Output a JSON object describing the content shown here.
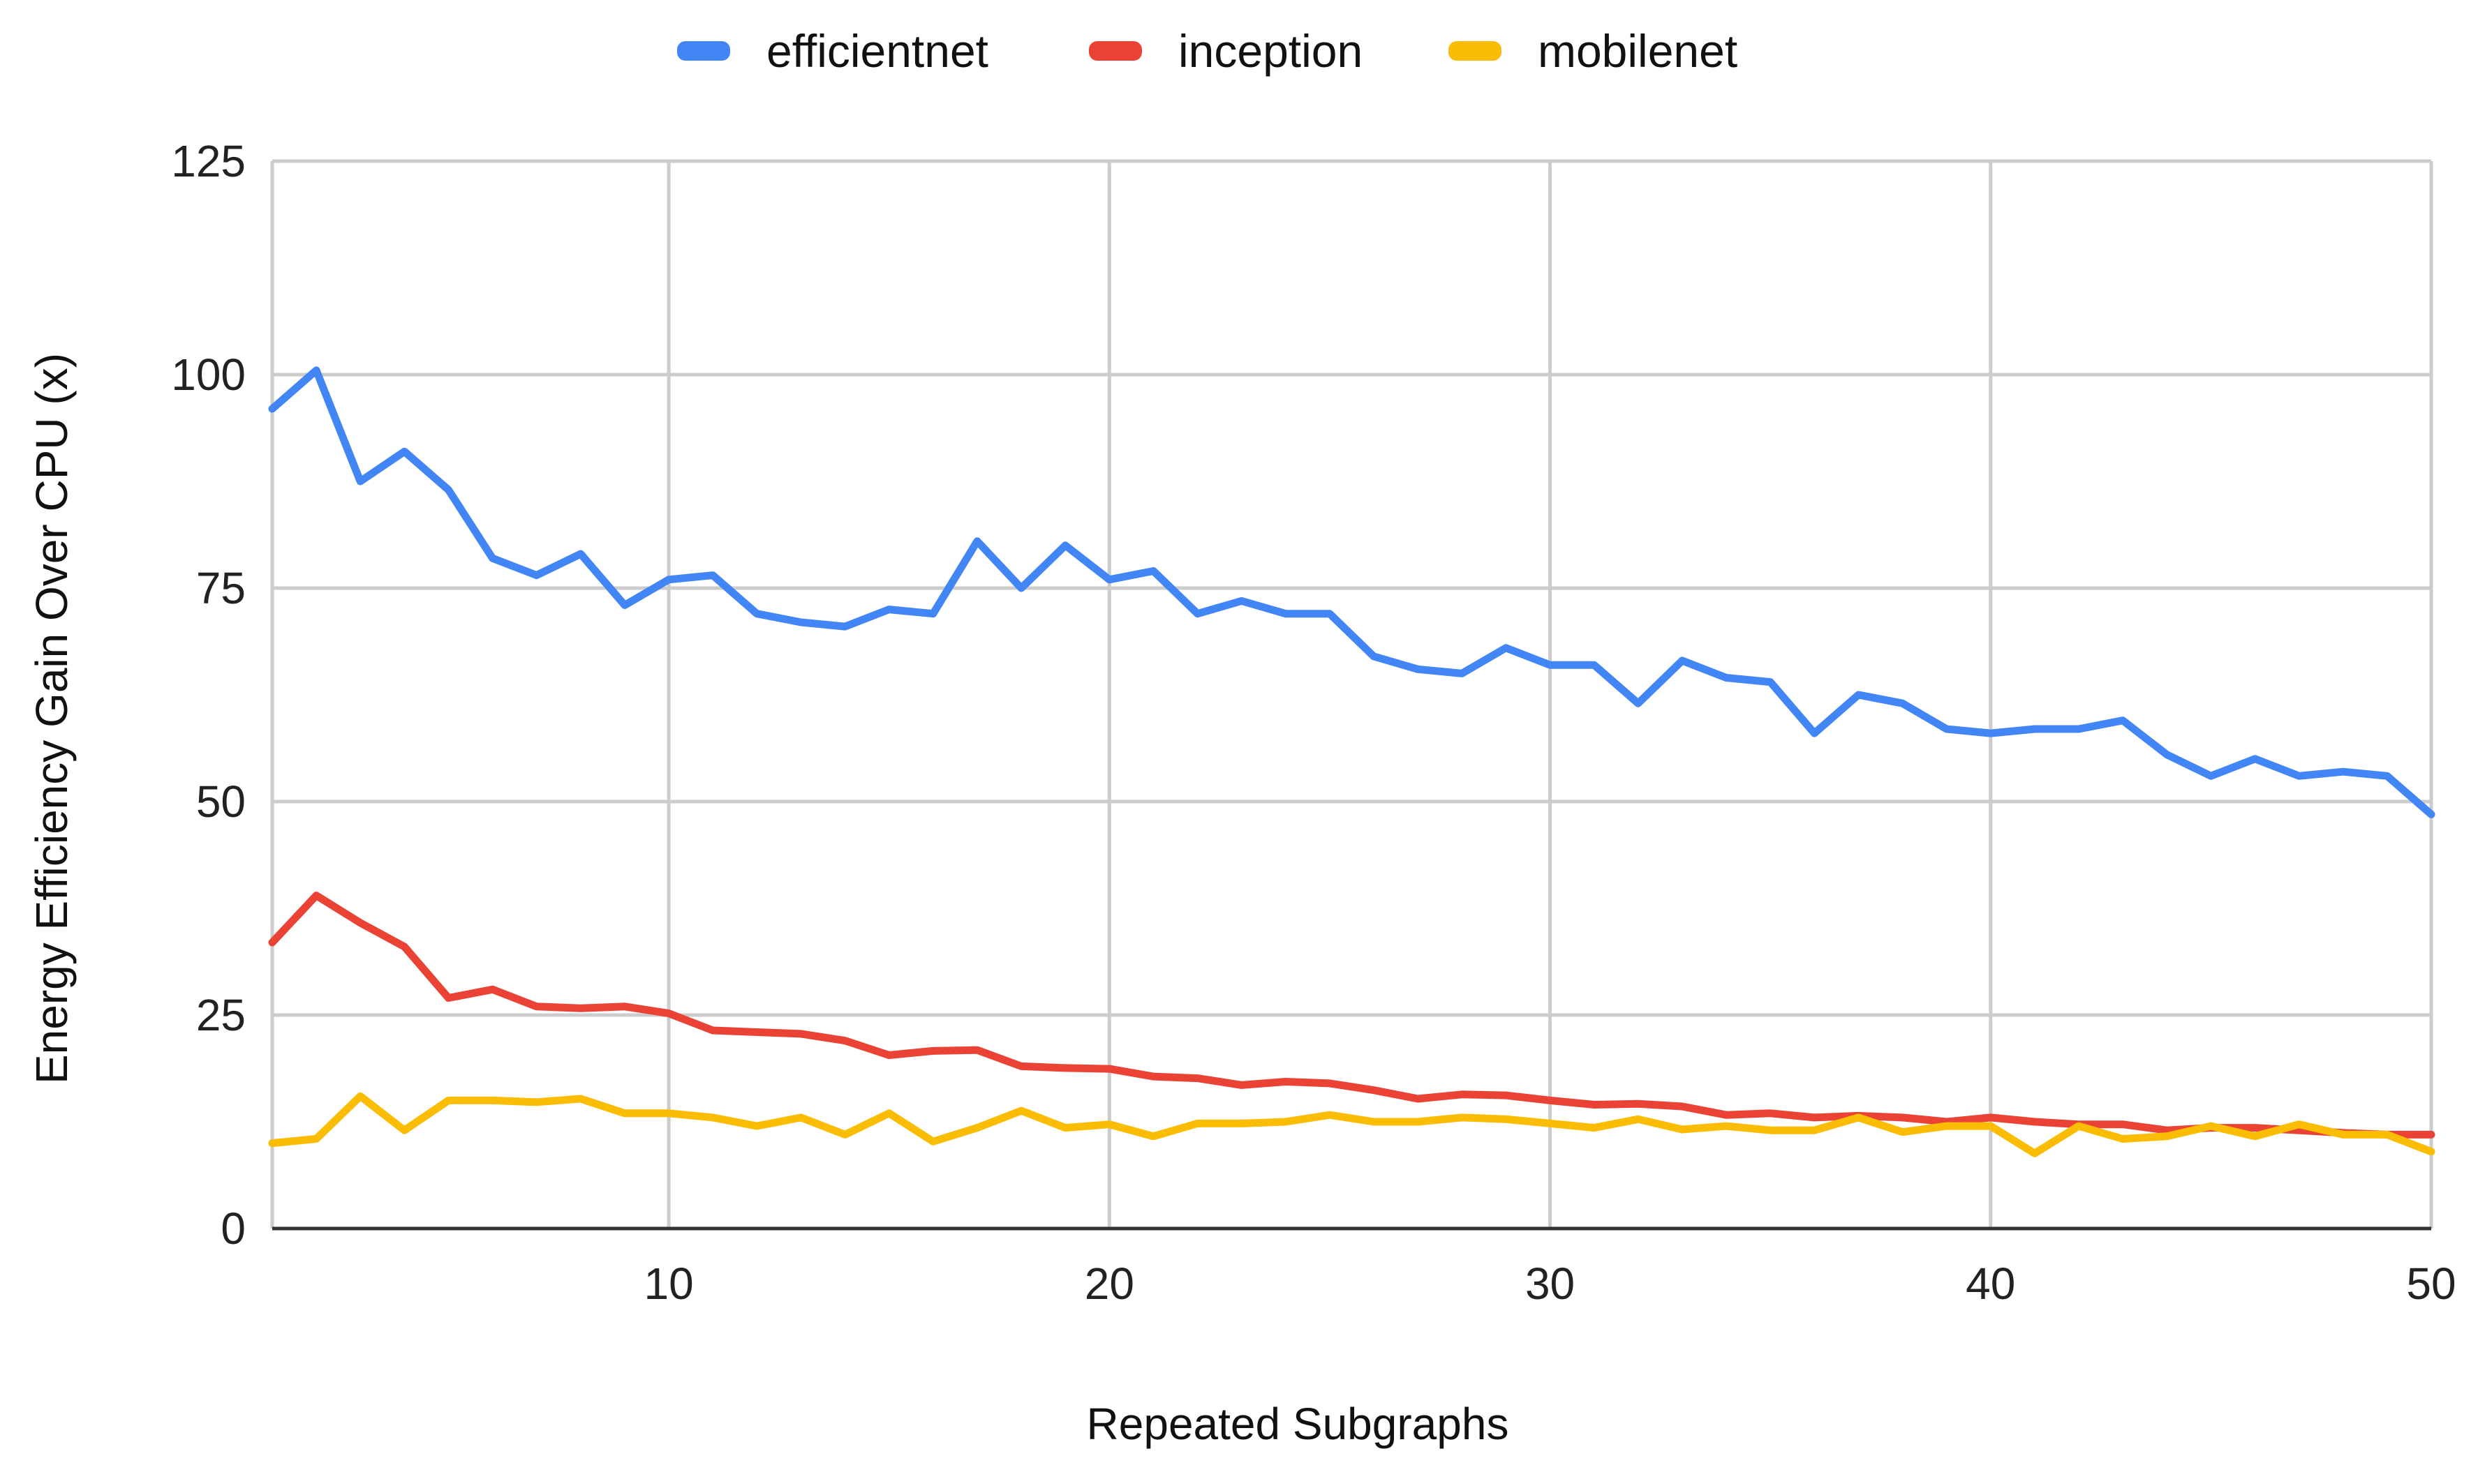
{
  "chart_data": {
    "type": "line",
    "title": "",
    "xlabel": "Repeated Subgraphs",
    "ylabel": "Energy Efficiency Gain Over CPU (x)",
    "xlim": [
      1,
      50
    ],
    "ylim": [
      0,
      125
    ],
    "x_ticks": [
      10,
      20,
      30,
      40,
      50
    ],
    "y_ticks": [
      0,
      25,
      50,
      75,
      100,
      125
    ],
    "grid": true,
    "legend_position": "top-center",
    "x": [
      1,
      2,
      3,
      4,
      5,
      6,
      7,
      8,
      9,
      10,
      11,
      12,
      13,
      14,
      15,
      16,
      17,
      18,
      19,
      20,
      21,
      22,
      23,
      24,
      25,
      26,
      27,
      28,
      29,
      30,
      31,
      32,
      33,
      34,
      35,
      36,
      37,
      38,
      39,
      40,
      41,
      42,
      43,
      44,
      45,
      46,
      47,
      48,
      49,
      50
    ],
    "series": [
      {
        "name": "efficientnet",
        "color": "#4285F4",
        "values": [
          96,
          100.5,
          87.5,
          91,
          86.5,
          78.5,
          76.5,
          79,
          73,
          76,
          76.5,
          72,
          71,
          70.5,
          72.5,
          72,
          80.5,
          75,
          80,
          76,
          77,
          72,
          73.5,
          72,
          72,
          67,
          65.5,
          65,
          68,
          66,
          66,
          61.5,
          66.5,
          64.5,
          64,
          58,
          62.5,
          61.5,
          58.5,
          58,
          58.5,
          58.5,
          59.5,
          55.5,
          53,
          55,
          53,
          53.5,
          53,
          48.5
        ]
      },
      {
        "name": "inception",
        "color": "#EA4335",
        "values": [
          33.5,
          39,
          35.8,
          33,
          27,
          28,
          26,
          25.8,
          26,
          25.2,
          23.2,
          23,
          22.8,
          22,
          20.3,
          20.8,
          20.9,
          19,
          18.8,
          18.7,
          17.8,
          17.6,
          16.8,
          17.2,
          17,
          16.2,
          15.2,
          15.7,
          15.6,
          15,
          14.5,
          14.6,
          14.3,
          13.3,
          13.5,
          13,
          13.2,
          13,
          12.5,
          13,
          12.5,
          12.2,
          12.2,
          11.5,
          11.8,
          11.8,
          11.5,
          11.2,
          11,
          11
        ]
      },
      {
        "name": "mobilenet",
        "color": "#FBBC04",
        "values": [
          10,
          10.5,
          15.5,
          11.5,
          15,
          15,
          14.8,
          15.2,
          13.5,
          13.5,
          13,
          12,
          13,
          11,
          13.5,
          10.2,
          11.8,
          13.8,
          11.8,
          12.2,
          10.8,
          12.3,
          12.3,
          12.5,
          13.3,
          12.5,
          12.5,
          13,
          12.8,
          12.3,
          11.8,
          12.8,
          11.6,
          12,
          11.5,
          11.5,
          13,
          11.3,
          12,
          12,
          8.8,
          12,
          10.5,
          10.8,
          12,
          10.8,
          12.2,
          11,
          11,
          9
        ]
      }
    ]
  }
}
